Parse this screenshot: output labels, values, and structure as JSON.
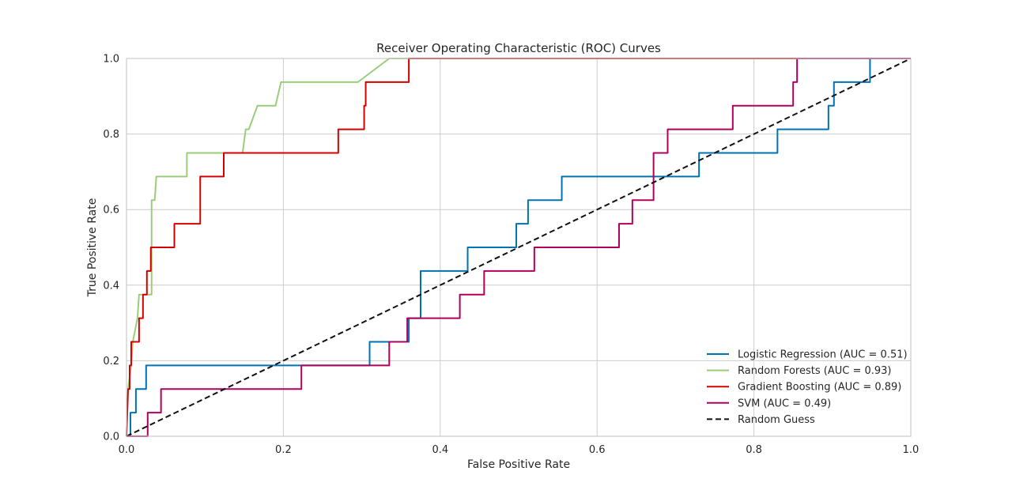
{
  "chart_data": {
    "type": "line",
    "title": "Receiver Operating Characteristic (ROC) Curves",
    "xlabel": "False Positive Rate",
    "ylabel": "True Positive Rate",
    "xlim": [
      0,
      1
    ],
    "ylim": [
      0,
      1
    ],
    "xticks": [
      "0.0",
      "0.2",
      "0.4",
      "0.6",
      "0.8",
      "1.0"
    ],
    "yticks": [
      "0.0",
      "0.2",
      "0.4",
      "0.6",
      "0.8",
      "1.0"
    ],
    "grid": true,
    "legend_position": "lower-right",
    "series": [
      {
        "name": "Logistic Regression (AUC = 0.51)",
        "color": "#0072b2",
        "style": "solid",
        "points": [
          [
            0,
            0
          ],
          [
            0.005,
            0
          ],
          [
            0.005,
            0.0625
          ],
          [
            0.012,
            0.0625
          ],
          [
            0.012,
            0.125
          ],
          [
            0.025,
            0.125
          ],
          [
            0.025,
            0.1875
          ],
          [
            0.31,
            0.1875
          ],
          [
            0.31,
            0.25
          ],
          [
            0.36,
            0.25
          ],
          [
            0.36,
            0.3125
          ],
          [
            0.375,
            0.3125
          ],
          [
            0.375,
            0.4375
          ],
          [
            0.435,
            0.4375
          ],
          [
            0.435,
            0.5
          ],
          [
            0.497,
            0.5
          ],
          [
            0.497,
            0.5625
          ],
          [
            0.512,
            0.5625
          ],
          [
            0.512,
            0.625
          ],
          [
            0.555,
            0.625
          ],
          [
            0.555,
            0.6875
          ],
          [
            0.73,
            0.6875
          ],
          [
            0.73,
            0.75
          ],
          [
            0.83,
            0.75
          ],
          [
            0.83,
            0.8125
          ],
          [
            0.895,
            0.8125
          ],
          [
            0.895,
            0.875
          ],
          [
            0.902,
            0.875
          ],
          [
            0.902,
            0.9375
          ],
          [
            0.948,
            0.9375
          ],
          [
            0.948,
            1.0
          ],
          [
            1.0,
            1.0
          ]
        ]
      },
      {
        "name": "Random Forests (AUC = 0.93)",
        "color": "#9acd7a",
        "style": "solid",
        "points": [
          [
            0,
            0
          ],
          [
            0.002,
            0.125
          ],
          [
            0.006,
            0.1875
          ],
          [
            0.008,
            0.25
          ],
          [
            0.014,
            0.3125
          ],
          [
            0.016,
            0.375
          ],
          [
            0.032,
            0.375
          ],
          [
            0.032,
            0.625
          ],
          [
            0.036,
            0.625
          ],
          [
            0.038,
            0.6875
          ],
          [
            0.077,
            0.6875
          ],
          [
            0.077,
            0.75
          ],
          [
            0.148,
            0.75
          ],
          [
            0.152,
            0.8125
          ],
          [
            0.156,
            0.8125
          ],
          [
            0.167,
            0.875
          ],
          [
            0.19,
            0.875
          ],
          [
            0.197,
            0.9375
          ],
          [
            0.295,
            0.9375
          ],
          [
            0.335,
            1.0
          ],
          [
            1.0,
            1.0
          ]
        ]
      },
      {
        "name": "Gradient Boosting (AUC = 0.89)",
        "color": "#d40000",
        "style": "solid",
        "points": [
          [
            0,
            0
          ],
          [
            0.002,
            0.125
          ],
          [
            0.004,
            0.125
          ],
          [
            0.004,
            0.1875
          ],
          [
            0.006,
            0.1875
          ],
          [
            0.006,
            0.25
          ],
          [
            0.016,
            0.25
          ],
          [
            0.016,
            0.3125
          ],
          [
            0.021,
            0.3125
          ],
          [
            0.021,
            0.375
          ],
          [
            0.026,
            0.375
          ],
          [
            0.026,
            0.4375
          ],
          [
            0.031,
            0.4375
          ],
          [
            0.031,
            0.5
          ],
          [
            0.061,
            0.5
          ],
          [
            0.061,
            0.5625
          ],
          [
            0.094,
            0.5625
          ],
          [
            0.094,
            0.6875
          ],
          [
            0.124,
            0.6875
          ],
          [
            0.124,
            0.75
          ],
          [
            0.27,
            0.75
          ],
          [
            0.27,
            0.8125
          ],
          [
            0.303,
            0.8125
          ],
          [
            0.303,
            0.875
          ],
          [
            0.305,
            0.875
          ],
          [
            0.305,
            0.9375
          ],
          [
            0.36,
            0.9375
          ],
          [
            0.36,
            1.0
          ],
          [
            1.0,
            1.0
          ]
        ]
      },
      {
        "name": "SVM (AUC = 0.49)",
        "color": "#b0005e",
        "style": "solid",
        "points": [
          [
            0,
            0
          ],
          [
            0.027,
            0
          ],
          [
            0.027,
            0.0625
          ],
          [
            0.044,
            0.0625
          ],
          [
            0.044,
            0.125
          ],
          [
            0.223,
            0.125
          ],
          [
            0.223,
            0.1875
          ],
          [
            0.335,
            0.1875
          ],
          [
            0.335,
            0.25
          ],
          [
            0.358,
            0.25
          ],
          [
            0.358,
            0.3125
          ],
          [
            0.425,
            0.3125
          ],
          [
            0.425,
            0.375
          ],
          [
            0.456,
            0.375
          ],
          [
            0.456,
            0.4375
          ],
          [
            0.52,
            0.4375
          ],
          [
            0.52,
            0.5
          ],
          [
            0.628,
            0.5
          ],
          [
            0.628,
            0.5625
          ],
          [
            0.645,
            0.5625
          ],
          [
            0.645,
            0.625
          ],
          [
            0.672,
            0.625
          ],
          [
            0.672,
            0.75
          ],
          [
            0.69,
            0.75
          ],
          [
            0.69,
            0.8125
          ],
          [
            0.773,
            0.8125
          ],
          [
            0.773,
            0.875
          ],
          [
            0.85,
            0.875
          ],
          [
            0.85,
            0.9375
          ],
          [
            0.855,
            0.9375
          ],
          [
            0.855,
            1.0
          ],
          [
            1.0,
            1.0
          ]
        ]
      },
      {
        "name": "Random Guess",
        "color": "#111111",
        "style": "dashed",
        "points": [
          [
            0,
            0
          ],
          [
            1,
            1
          ]
        ]
      }
    ]
  }
}
